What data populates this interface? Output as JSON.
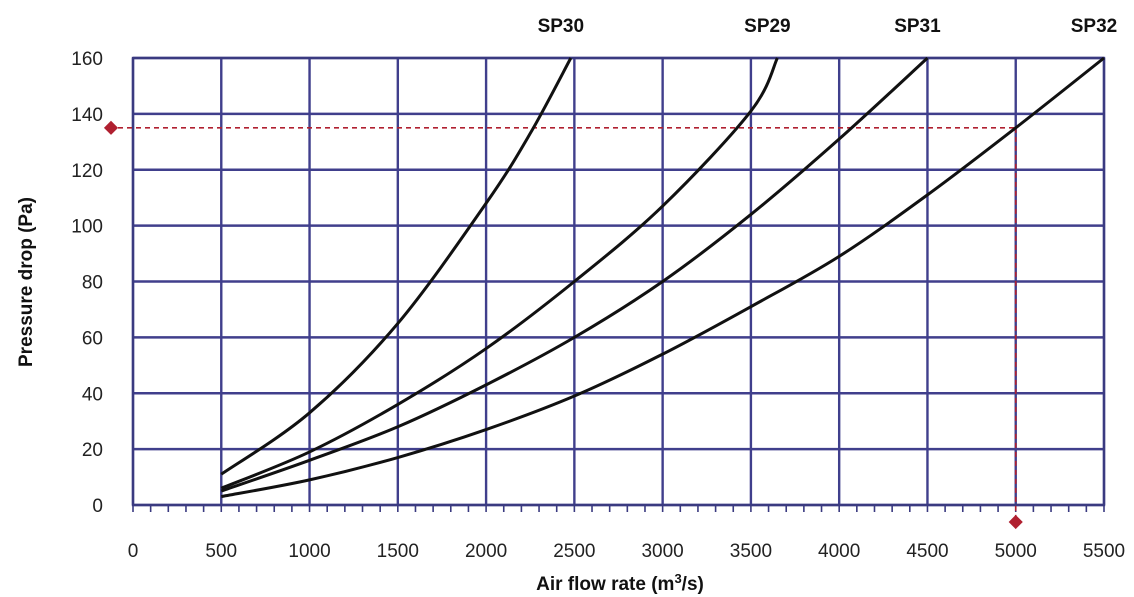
{
  "chart_data": {
    "type": "line",
    "title": "",
    "xlabel": "Air flow rate (m",
    "xlabel_sup": "3",
    "xlabel_suffix": "/s)",
    "ylabel": "Pressure drop (Pa)",
    "xlim": [
      0,
      5500
    ],
    "ylim": [
      0,
      160
    ],
    "x_ticks": [
      "0",
      "500",
      "1000",
      "1500",
      "2000",
      "2500",
      "3000",
      "3500",
      "4000",
      "4500",
      "5000",
      "5500"
    ],
    "y_ticks": [
      "0",
      "20",
      "40",
      "60",
      "80",
      "100",
      "120",
      "140",
      "160"
    ],
    "x_tick_values": [
      0,
      500,
      1000,
      1500,
      2000,
      2500,
      3000,
      3500,
      4000,
      4500,
      5000,
      5500
    ],
    "y_tick_values": [
      0,
      20,
      40,
      60,
      80,
      100,
      120,
      140,
      160
    ],
    "grid": true,
    "series": [
      {
        "name": "SP30",
        "x": [
          500,
          1000,
          1500,
          2000,
          2250,
          2480
        ],
        "y": [
          11,
          33,
          65,
          108,
          133,
          160
        ]
      },
      {
        "name": "SP29",
        "x": [
          500,
          1000,
          1500,
          2000,
          2500,
          3000,
          3500,
          3650
        ],
        "y": [
          6,
          19,
          36,
          56,
          80,
          107,
          141,
          160
        ]
      },
      {
        "name": "SP31",
        "x": [
          500,
          1000,
          1500,
          2000,
          2500,
          3000,
          3500,
          4000,
          4500
        ],
        "y": [
          5,
          16,
          28,
          43,
          60,
          80,
          104,
          131,
          160
        ]
      },
      {
        "name": "SP32",
        "x": [
          500,
          1000,
          1500,
          2000,
          2500,
          3000,
          3500,
          4000,
          4500,
          5000,
          5500
        ],
        "y": [
          3,
          9,
          17,
          27,
          39,
          54,
          71,
          89,
          111,
          135,
          160
        ]
      }
    ],
    "reference": {
      "x": 5000,
      "y": 135,
      "color": "#b02030"
    }
  }
}
